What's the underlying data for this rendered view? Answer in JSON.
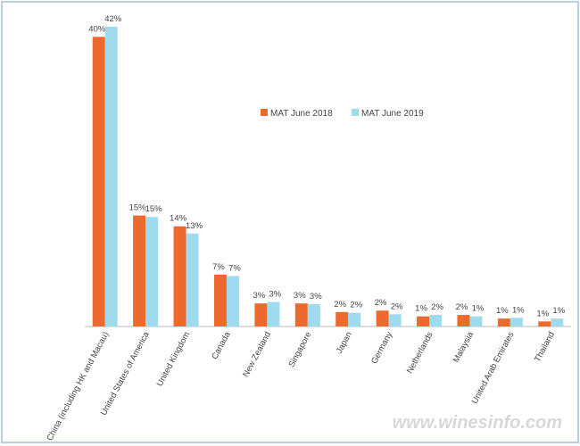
{
  "chart_data": {
    "type": "bar",
    "categories": [
      "China (including HK and Macau)",
      "United States of America",
      "United Kingdom",
      "Canada",
      "New Zealand",
      "Singapore",
      "Japan",
      "Germany",
      "Netherlands",
      "Malaysia",
      "United Arab Emirates",
      "Thailand"
    ],
    "series": [
      {
        "name": "MAT June 2018",
        "color": "#ed6a2e",
        "values": [
          40.2,
          15.4,
          13.9,
          7.2,
          3.2,
          3.2,
          2.0,
          2.2,
          1.4,
          1.6,
          1.1,
          0.7
        ],
        "value_labels": [
          "40%",
          "15%",
          "14%",
          "7%",
          "3%",
          "3%",
          "2%",
          "2%",
          "1%",
          "2%",
          "1%",
          "1%"
        ]
      },
      {
        "name": "MAT June 2019",
        "color": "#9fdbef",
        "values": [
          41.6,
          15.2,
          12.9,
          7.0,
          3.4,
          3.1,
          1.9,
          1.7,
          1.6,
          1.4,
          1.2,
          1.1
        ],
        "value_labels": [
          "42%",
          "15%",
          "13%",
          "7%",
          "3%",
          "3%",
          "2%",
          "2%",
          "2%",
          "1%",
          "1%",
          "1%"
        ]
      }
    ],
    "watermark": "www.winesinfo.com"
  }
}
